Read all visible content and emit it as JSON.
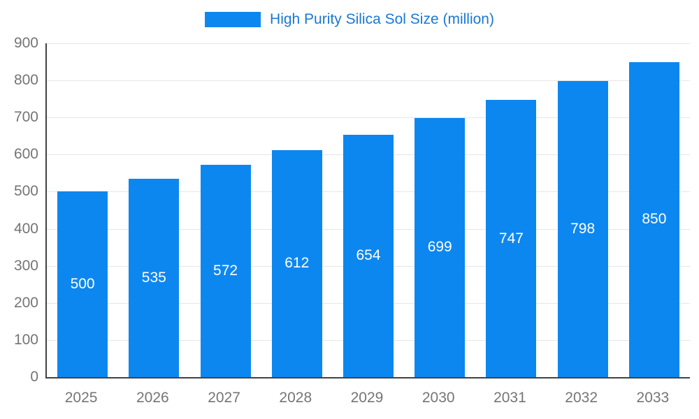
{
  "legend": {
    "label": "High Purity Silica Sol Size (million)"
  },
  "chart_data": {
    "type": "bar",
    "title": "High Purity Silica Sol Size (million)",
    "categories": [
      "2025",
      "2026",
      "2027",
      "2028",
      "2029",
      "2030",
      "2031",
      "2032",
      "2033"
    ],
    "values": [
      500,
      535,
      572,
      612,
      654,
      699,
      747,
      798,
      850
    ],
    "xlabel": "",
    "ylabel": "",
    "ylim": [
      0,
      900
    ],
    "yticks": [
      0,
      100,
      200,
      300,
      400,
      500,
      600,
      700,
      800,
      900
    ],
    "grid": true,
    "legend_position": "top",
    "bar_color": "#0d87f0",
    "title_color": "#1a78d2",
    "label_color": "#ffffff",
    "axis_text_color": "#757575",
    "grid_color": "#e6e6e6",
    "axis_line_color": "#424242"
  }
}
